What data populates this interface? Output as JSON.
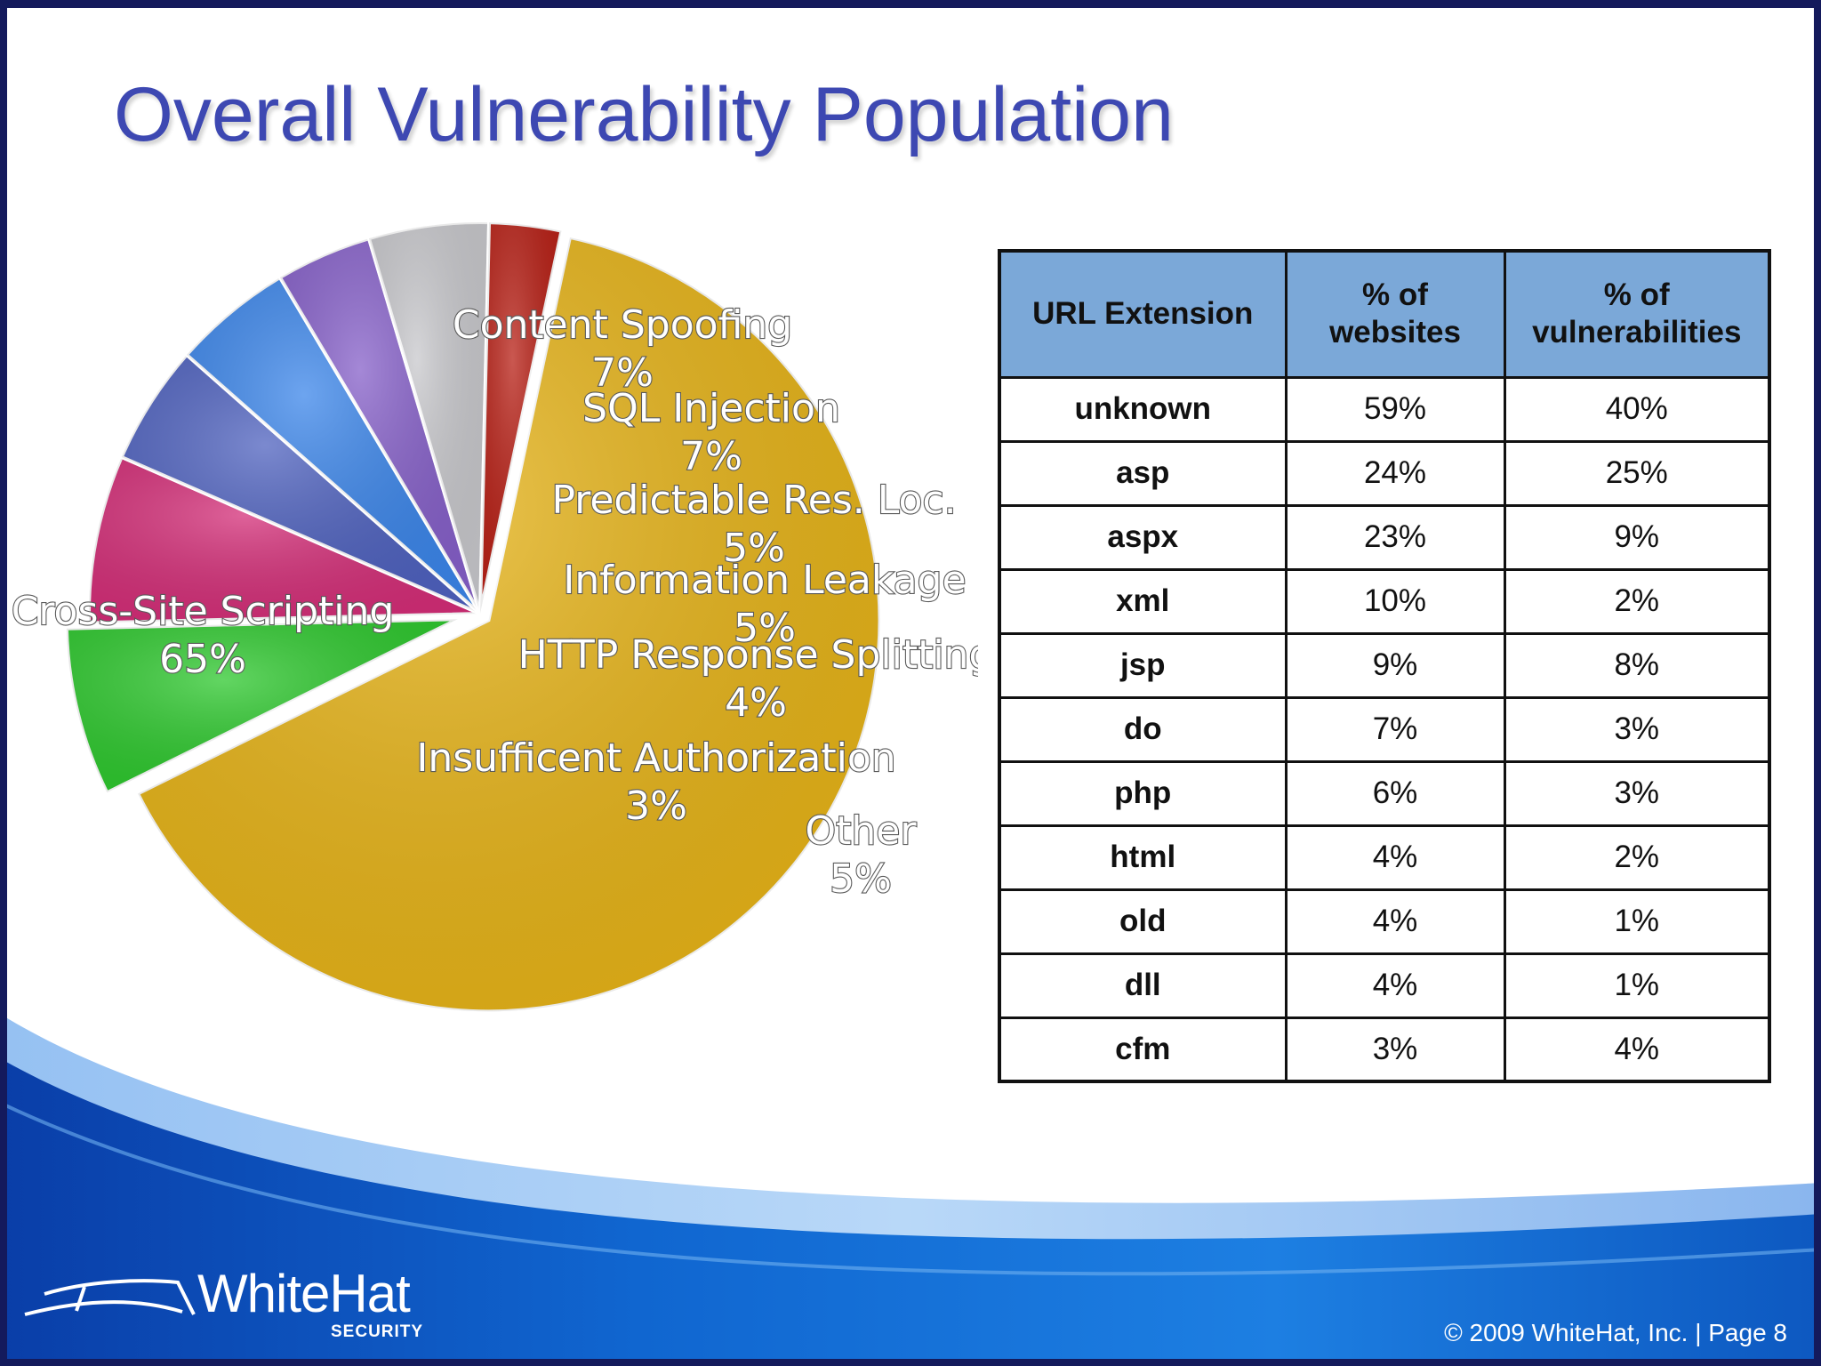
{
  "slide": {
    "title": "Overall Vulnerability Population"
  },
  "chart_data": {
    "type": "pie",
    "title": "",
    "slices": [
      {
        "label": "Cross-Site Scripting",
        "value": 65,
        "value_label": "65%",
        "color": "#e7b418",
        "exploded": true
      },
      {
        "label": "Content Spoofing",
        "value": 7,
        "value_label": "7%",
        "color": "#2ec82e",
        "exploded": true
      },
      {
        "label": "SQL Injection",
        "value": 7,
        "value_label": "7%",
        "color": "#d42e78",
        "exploded": false
      },
      {
        "label": "Predictable Res. Loc.",
        "value": 5,
        "value_label": "5%",
        "color": "#4f62bf",
        "exploded": false
      },
      {
        "label": "Information Leakage",
        "value": 5,
        "value_label": "5%",
        "color": "#3c86ea",
        "exploded": false
      },
      {
        "label": "HTTP Response Splitting",
        "value": 4,
        "value_label": "4%",
        "color": "#8660c9",
        "exploded": false
      },
      {
        "label": "Other",
        "value": 5,
        "value_label": "5%",
        "color": "#c8c8cc",
        "exploded": false
      },
      {
        "label": "Insufficent Authorization",
        "value": 3,
        "value_label": "3%",
        "color": "#b82016",
        "exploded": false
      }
    ],
    "legend": "none",
    "labels": "on-slices"
  },
  "table": {
    "headers": [
      "URL Extension",
      "% of websites",
      "% of vulnerabilities"
    ],
    "rows": [
      [
        "unknown",
        "59%",
        "40%"
      ],
      [
        "asp",
        "24%",
        "25%"
      ],
      [
        "aspx",
        "23%",
        "9%"
      ],
      [
        "xml",
        "10%",
        "2%"
      ],
      [
        "jsp",
        "9%",
        "8%"
      ],
      [
        "do",
        "7%",
        "3%"
      ],
      [
        "php",
        "6%",
        "3%"
      ],
      [
        "html",
        "4%",
        "2%"
      ],
      [
        "old",
        "4%",
        "1%"
      ],
      [
        "dll",
        "4%",
        "1%"
      ],
      [
        "cfm",
        "3%",
        "4%"
      ]
    ]
  },
  "footer": {
    "logo_name": "WhiteHat",
    "logo_sub": "SECURITY",
    "copyright": "© 2009 WhiteHat, Inc.  |  Page   8"
  },
  "colors": {
    "title": "#3d48b2",
    "table_header": "#7ba8d8",
    "footer_blue": "#0c5fc4",
    "frame": "#141a5c"
  }
}
